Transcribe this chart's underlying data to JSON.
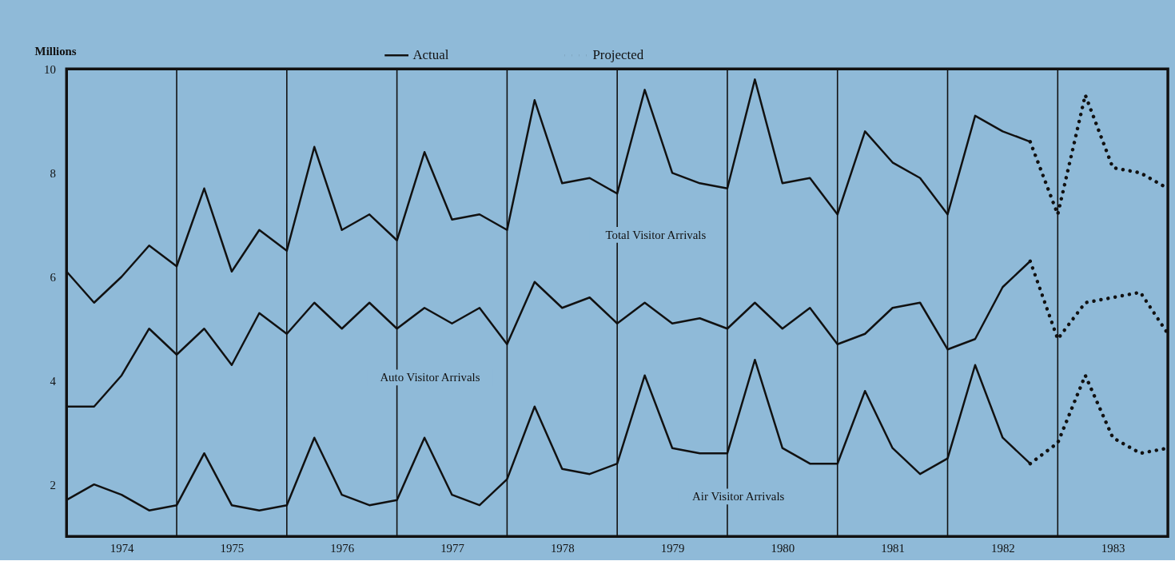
{
  "chart_data": {
    "type": "line",
    "ylabel": "Millions",
    "xlim": [
      1974,
      1984
    ],
    "ylim": [
      1,
      10
    ],
    "yticks": [
      2,
      4,
      6,
      8,
      10
    ],
    "xticks": [
      {
        "value": 1974.5,
        "label": "1974"
      },
      {
        "value": 1975.5,
        "label": "1975"
      },
      {
        "value": 1976.5,
        "label": "1976"
      },
      {
        "value": 1977.5,
        "label": "1977"
      },
      {
        "value": 1978.5,
        "label": "1978"
      },
      {
        "value": 1979.5,
        "label": "1979"
      },
      {
        "value": 1980.5,
        "label": "1980"
      },
      {
        "value": 1981.5,
        "label": "1981"
      },
      {
        "value": 1982.5,
        "label": "1982"
      },
      {
        "value": 1983.5,
        "label": "1983"
      }
    ],
    "grid": false,
    "legend": "top",
    "marker": "none",
    "ref_lines": [
      {
        "axis": "x",
        "value": 1975
      },
      {
        "axis": "x",
        "value": 1976
      },
      {
        "axis": "x",
        "value": 1977
      },
      {
        "axis": "x",
        "value": 1978
      },
      {
        "axis": "x",
        "value": 1979
      },
      {
        "axis": "x",
        "value": 1980
      },
      {
        "axis": "x",
        "value": 1981
      },
      {
        "axis": "x",
        "value": 1982
      },
      {
        "axis": "x",
        "value": 1983
      }
    ],
    "annotations": [
      "Total Visitor Arrivals",
      "Auto Visitor Arrivals",
      "Air Visitor Arrivals"
    ],
    "series": [
      {
        "name": "Actual",
        "color": "#111111",
        "line_style": "solid",
        "x": [
          1974,
          1974.25,
          1974.5,
          1974.75,
          1975,
          1975.25,
          1975.5,
          1975.75,
          1976,
          1976.25,
          1976.5,
          1976.75,
          1977,
          1977.25,
          1977.5,
          1977.75,
          1978,
          1978.25,
          1978.5,
          1978.75,
          1979,
          1979.25,
          1979.5,
          1979.75,
          1980,
          1980.25,
          1980.5,
          1980.75,
          1981,
          1981.25,
          1981.5,
          1981.75,
          1982,
          1982.25,
          1982.5,
          1982.75
        ],
        "values": [
          6.1,
          5.5,
          6.0,
          6.6,
          6.2,
          7.7,
          6.1,
          6.9,
          6.5,
          8.5,
          6.9,
          7.2,
          6.7,
          8.4,
          7.1,
          7.2,
          6.9,
          9.4,
          7.8,
          7.9,
          7.6,
          9.6,
          8.0,
          7.8,
          7.7,
          9.8,
          7.8,
          7.9,
          7.2,
          8.8,
          8.2,
          7.9,
          7.2,
          9.1,
          8.8,
          8.6
        ]
      },
      {
        "color": "#111111",
        "line_style": "solid",
        "x": [
          1974,
          1974.25,
          1974.5,
          1974.75,
          1975,
          1975.25,
          1975.5,
          1975.75,
          1976,
          1976.25,
          1976.5,
          1976.75,
          1977,
          1977.25,
          1977.5,
          1977.75,
          1978,
          1978.25,
          1978.5,
          1978.75,
          1979,
          1979.25,
          1979.5,
          1979.75,
          1980,
          1980.25,
          1980.5,
          1980.75,
          1981,
          1981.25,
          1981.5,
          1981.75,
          1982,
          1982.25,
          1982.5,
          1982.75
        ],
        "values": [
          3.5,
          3.5,
          4.1,
          5.0,
          4.5,
          5.0,
          4.3,
          5.3,
          4.9,
          5.5,
          5.0,
          5.5,
          5.0,
          5.4,
          5.1,
          5.4,
          4.7,
          5.9,
          5.4,
          5.6,
          5.1,
          5.5,
          5.1,
          5.2,
          5.0,
          5.5,
          5.0,
          5.4,
          4.7,
          4.9,
          5.4,
          5.5,
          4.6,
          4.8,
          5.8,
          6.3
        ]
      },
      {
        "color": "#111111",
        "line_style": "solid",
        "x": [
          1974,
          1974.25,
          1974.5,
          1974.75,
          1975,
          1975.25,
          1975.5,
          1975.75,
          1976,
          1976.25,
          1976.5,
          1976.75,
          1977,
          1977.25,
          1977.5,
          1977.75,
          1978,
          1978.25,
          1978.5,
          1978.75,
          1979,
          1979.25,
          1979.5,
          1979.75,
          1980,
          1980.25,
          1980.5,
          1980.75,
          1981,
          1981.25,
          1981.5,
          1981.75,
          1982,
          1982.25,
          1982.5,
          1982.75
        ],
        "values": [
          1.7,
          2.0,
          1.8,
          1.5,
          1.6,
          2.6,
          1.6,
          1.5,
          1.6,
          2.9,
          1.8,
          1.6,
          1.7,
          2.9,
          1.8,
          1.6,
          2.1,
          3.5,
          2.3,
          2.2,
          2.4,
          4.1,
          2.7,
          2.6,
          2.6,
          4.4,
          2.7,
          2.4,
          2.4,
          3.8,
          2.7,
          2.2,
          2.5,
          4.3,
          2.9,
          2.4
        ]
      },
      {
        "name": "Projected",
        "color": "#111111",
        "line_style": "dotted",
        "x": [
          1982.75,
          1983,
          1983.25,
          1983.5,
          1983.75,
          1984
        ],
        "values": [
          8.6,
          7.2,
          9.5,
          8.1,
          8.0,
          7.7
        ]
      },
      {
        "color": "#111111",
        "line_style": "dotted",
        "x": [
          1982.75,
          1983,
          1983.25,
          1983.5,
          1983.75,
          1984
        ],
        "values": [
          6.3,
          4.8,
          5.5,
          5.6,
          5.7,
          4.9
        ]
      },
      {
        "color": "#111111",
        "line_style": "dotted",
        "x": [
          1982.75,
          1983,
          1983.25,
          1983.5,
          1983.75,
          1984
        ],
        "values": [
          2.4,
          2.8,
          4.1,
          2.9,
          2.6,
          2.7
        ]
      }
    ]
  }
}
